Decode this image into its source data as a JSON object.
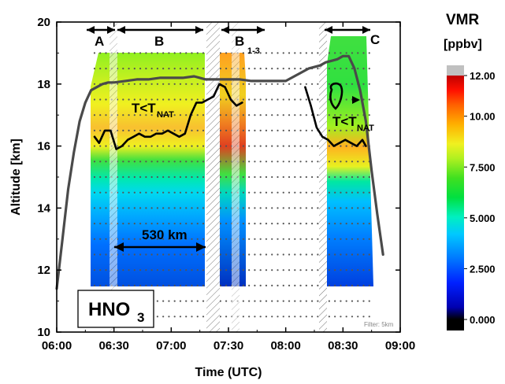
{
  "chart_data": {
    "type": "heatmap",
    "title": "",
    "xlabel": "Time (UTC)",
    "ylabel": "Altitude [km]",
    "xlim": [
      "06:00",
      "09:00"
    ],
    "ylim": [
      10,
      20
    ],
    "x_ticks": [
      "06:00",
      "06:30",
      "07:00",
      "07:30",
      "08:00",
      "08:30",
      "09:00"
    ],
    "y_ticks": [
      "10",
      "12",
      "14",
      "16",
      "18",
      "20"
    ],
    "colorbar": {
      "title": "VMR",
      "unit": "[ppbv]",
      "ticks": [
        "12.00",
        "10.00",
        "7.500",
        "5.000",
        "2.500",
        "0.000"
      ],
      "range": [
        0,
        12
      ]
    },
    "segment_labels": [
      {
        "label": "A",
        "sub": ""
      },
      {
        "label": "B",
        "sub": ""
      },
      {
        "label": "B",
        "sub": "1-3"
      },
      {
        "label": "C",
        "sub": ""
      }
    ],
    "annotations": {
      "tnat_main": "T<T",
      "tnat_sub": "NAT",
      "distance": "530 km",
      "species_main": "HNO",
      "species_sub": "3",
      "filter": "Filter: 5km"
    },
    "series": [
      {
        "kind": "flight_altitude",
        "x": [
          6.0,
          6.05,
          6.1,
          6.15,
          6.2,
          6.25,
          6.3,
          6.35,
          6.4,
          6.45,
          6.5,
          6.6,
          6.7,
          6.8,
          6.9,
          7.0,
          7.1,
          7.2,
          7.3,
          7.4,
          7.5,
          7.6,
          7.7,
          7.8,
          7.9,
          8.0,
          8.1,
          8.2,
          8.3,
          8.35,
          8.4,
          8.45,
          8.5,
          8.55,
          8.6,
          8.65,
          8.7,
          8.75,
          8.8,
          8.85
        ],
        "y": [
          11.4,
          13.0,
          14.6,
          15.8,
          16.8,
          17.4,
          17.8,
          17.9,
          18.0,
          18.05,
          18.05,
          18.1,
          18.15,
          18.15,
          18.2,
          18.2,
          18.2,
          18.25,
          18.15,
          18.15,
          18.15,
          18.15,
          18.1,
          18.1,
          18.1,
          18.1,
          18.3,
          18.5,
          18.6,
          18.7,
          18.75,
          18.8,
          18.9,
          18.9,
          18.5,
          17.8,
          16.8,
          15.2,
          13.8,
          12.5
        ]
      },
      {
        "kind": "tnat_contour",
        "x": [
          6.33,
          6.37,
          6.42,
          6.47,
          6.52,
          6.57,
          6.62,
          6.67,
          6.72,
          6.77,
          6.82,
          6.87,
          6.92,
          6.97,
          7.02,
          7.07,
          7.12,
          7.17,
          7.22,
          7.27,
          7.32,
          7.37,
          7.42,
          7.47,
          7.52,
          7.57,
          7.62
        ],
        "y": [
          16.3,
          16.1,
          16.5,
          16.5,
          15.9,
          16.0,
          16.2,
          16.3,
          16.4,
          16.3,
          16.3,
          16.4,
          16.4,
          16.5,
          16.4,
          16.3,
          16.4,
          17.0,
          17.4,
          17.4,
          17.5,
          17.6,
          18.0,
          17.9,
          17.5,
          17.3,
          17.4
        ]
      },
      {
        "kind": "tnat_contour",
        "x": [
          8.17,
          8.22,
          8.27,
          8.32,
          8.37,
          8.42,
          8.47,
          8.52,
          8.57,
          8.62,
          8.67,
          8.7
        ],
        "y": [
          17.9,
          17.3,
          16.6,
          16.3,
          16.2,
          16.0,
          16.1,
          16.2,
          16.1,
          16.0,
          16.2,
          16.0
        ]
      }
    ]
  }
}
